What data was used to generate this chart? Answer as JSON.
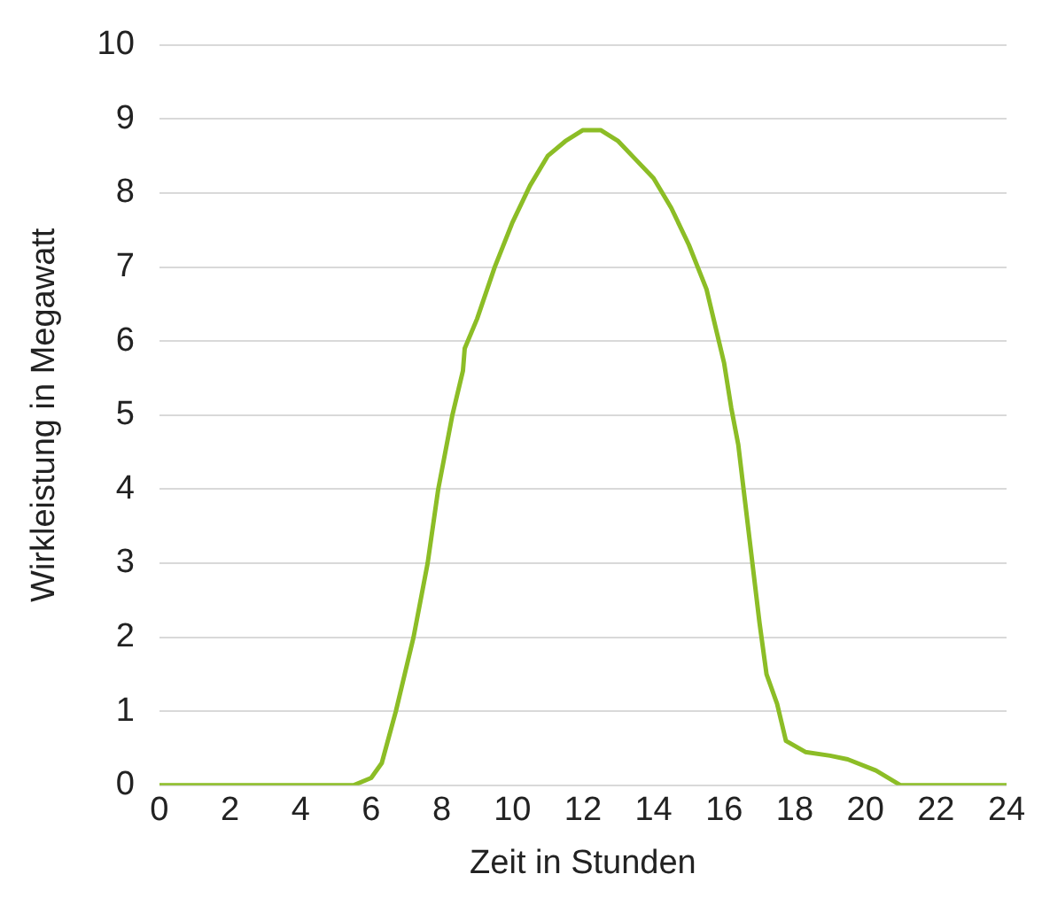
{
  "chart_data": {
    "type": "line",
    "xlabel": "Zeit in Stunden",
    "ylabel": "Wirkleistung in Megawatt",
    "xlim": [
      0,
      24
    ],
    "xticks": [
      0,
      2,
      4,
      6,
      8,
      10,
      12,
      14,
      16,
      18,
      20,
      22,
      24
    ],
    "ylim": [
      0,
      10
    ],
    "yticks": [
      0,
      1,
      2,
      3,
      4,
      5,
      6,
      7,
      8,
      9,
      10
    ],
    "grid": "y",
    "legend": false,
    "marker": "none",
    "line_style": "solid",
    "series": [
      {
        "color": "#8cbd26",
        "x": [
          0,
          5.5,
          6.0,
          6.3,
          6.7,
          7.2,
          7.6,
          7.9,
          8.3,
          8.6,
          8.65,
          9.0,
          9.5,
          10,
          10.5,
          11,
          11.5,
          12,
          12.5,
          13,
          13.5,
          14,
          14.5,
          15,
          15.5,
          15.8,
          16,
          16.2,
          16.4,
          16.6,
          16.8,
          17,
          17.2,
          17.5,
          17.7,
          17.75,
          18.3,
          19,
          19.5,
          20.3,
          21,
          24
        ],
        "values": [
          0,
          0,
          0.1,
          0.3,
          1.0,
          2.0,
          3.0,
          4.0,
          5.0,
          5.6,
          5.9,
          6.3,
          7.0,
          7.6,
          8.1,
          8.5,
          8.7,
          8.85,
          8.85,
          8.7,
          8.45,
          8.2,
          7.8,
          7.3,
          6.7,
          6.1,
          5.7,
          5.1,
          4.6,
          3.8,
          3.0,
          2.2,
          1.5,
          1.1,
          0.7,
          0.6,
          0.45,
          0.4,
          0.35,
          0.2,
          0,
          0
        ]
      }
    ]
  }
}
